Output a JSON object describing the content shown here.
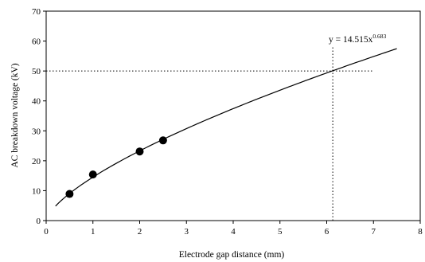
{
  "chart_data": {
    "type": "scatter",
    "title": "",
    "xlabel": "Electrode gap distance (mm)",
    "ylabel": "AC breakdown voltage (kV)",
    "xlim": [
      0,
      8
    ],
    "ylim": [
      0,
      70
    ],
    "x_ticks": [
      0,
      1,
      2,
      3,
      4,
      5,
      6,
      7,
      8
    ],
    "y_ticks": [
      0,
      10,
      20,
      30,
      40,
      50,
      60,
      70
    ],
    "grid": false,
    "legend": "none",
    "series": [
      {
        "kind": "points",
        "marker": "filled-circle",
        "x": [
          0.5,
          1.0,
          2.0,
          2.5
        ],
        "y": [
          8.9,
          15.4,
          23.1,
          26.8
        ]
      }
    ],
    "trendline": {
      "kind": "power",
      "coefficient": 14.515,
      "exponent": 0.683,
      "x_range": [
        0.2,
        7.5
      ],
      "label_main": "y = 14.515x",
      "label_exponent": "0.683"
    },
    "reference_lines": {
      "horizontal_y": 50,
      "horizontal_x_end": 7.0,
      "vertical_x": 6.13,
      "vertical_y_end": 58.5,
      "style": "dotted"
    },
    "colors": {
      "axis": "#000000",
      "marker": "#000000",
      "line": "#000000"
    }
  }
}
